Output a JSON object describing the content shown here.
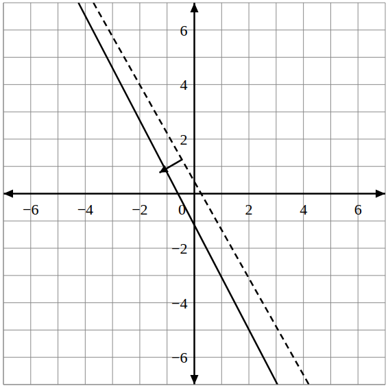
{
  "chart_data": {
    "type": "line",
    "xlim": [
      -7,
      7
    ],
    "ylim": [
      -7,
      7
    ],
    "xticks": [
      -6,
      -4,
      -2,
      0,
      2,
      4,
      6
    ],
    "yticks": [
      -6,
      -4,
      -2,
      2,
      4,
      6
    ],
    "grid": true,
    "series": [
      {
        "color": "#000000",
        "line_style": "solid",
        "x": [
          -4.25,
          3.05
        ],
        "values": [
          7,
          -7
        ]
      },
      {
        "color": "#000000",
        "line_style": "dashed",
        "x": [
          -3.7,
          4.2
        ],
        "values": [
          7,
          -7
        ]
      }
    ],
    "arrow": {
      "from": [
        -0.47,
        1.24
      ],
      "to": [
        -1.28,
        0.77
      ]
    }
  }
}
